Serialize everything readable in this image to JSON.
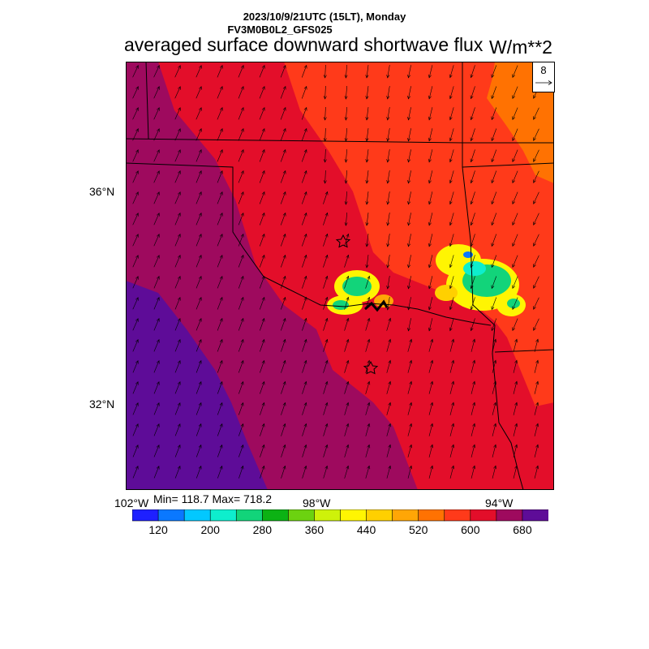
{
  "header": {
    "line1": "2023/10/9/21UTC (15LT), Monday",
    "line2": "FV3M0B0L2_GFS025",
    "title": "averaged surface downward shortwave flux",
    "units": "W/m**2"
  },
  "axes": {
    "lat_labels": [
      "36°N",
      "32°N"
    ],
    "lon_labels": [
      "102°W",
      "98°W",
      "94°W"
    ]
  },
  "stats": "Min= 118.7 Max= 718.2",
  "vector_reference": "8",
  "colorbar": {
    "colors": [
      "#1e20ff",
      "#0a78ff",
      "#02c8ff",
      "#0eeecd",
      "#12d47a",
      "#0cb214",
      "#6cd210",
      "#cef20a",
      "#fff502",
      "#ffd000",
      "#ffa606",
      "#ff7202",
      "#ff3a1a",
      "#e30e2a",
      "#9e0a5e",
      "#5e0c98"
    ],
    "tick_labels": [
      "120",
      "200",
      "280",
      "360",
      "440",
      "520",
      "600",
      "680"
    ]
  },
  "map": {
    "field_colors": {
      "east_orange": "#ff7202",
      "red_orange": "#ff3a1a",
      "crimson": "#e30e2a",
      "maroon": "#9e0a5e",
      "purple": "#5e0c98",
      "cloud_yellow": "#fff502",
      "cloud_green": "#12d47a",
      "cloud_blue": "#0a78ff"
    },
    "markers": [
      "star",
      "star"
    ]
  }
}
